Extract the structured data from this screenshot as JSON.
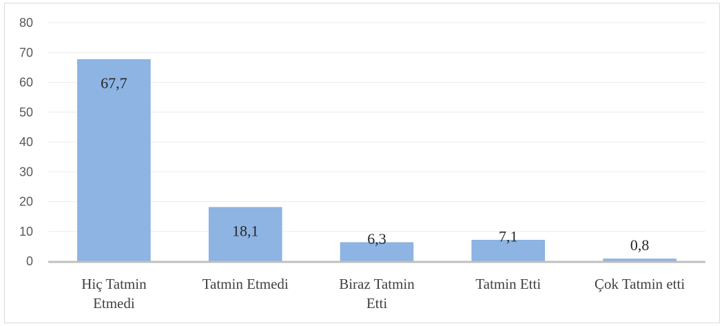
{
  "chart_data": {
    "type": "bar",
    "title": "",
    "xlabel": "",
    "ylabel": "",
    "categories": [
      [
        "Hiç Tatmin",
        "Etmedi"
      ],
      [
        "Tatmin Etmedi"
      ],
      [
        "Biraz Tatmin",
        "Etti"
      ],
      [
        "Tatmin Etti"
      ],
      [
        "Çok Tatmin etti"
      ]
    ],
    "values": [
      67.7,
      18.1,
      6.3,
      7.1,
      0.8
    ],
    "data_labels": [
      "67,7",
      "18,1",
      "6,3",
      "7,1",
      "0,8"
    ],
    "ylim": [
      0,
      80
    ],
    "yticks": [
      0,
      10,
      20,
      30,
      40,
      50,
      60,
      70,
      80
    ],
    "grid": true,
    "legend": "none",
    "colors": {
      "bar": "#8db4e2",
      "bar_edge": "#7ea6d6",
      "axis": "#bfbfbf",
      "grid": "#ececec"
    }
  }
}
